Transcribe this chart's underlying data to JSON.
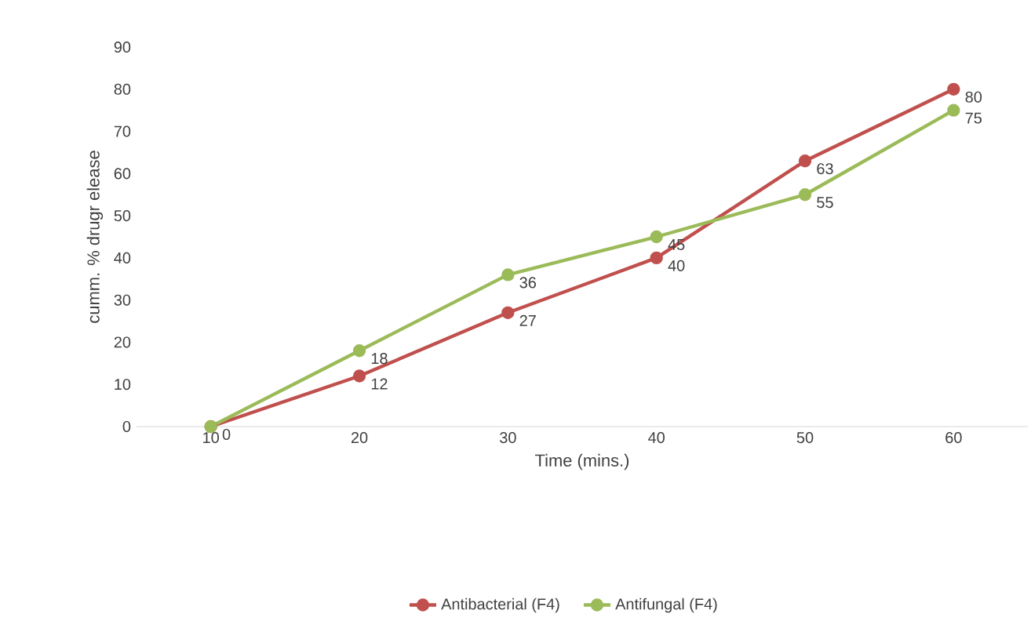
{
  "chart_data": {
    "type": "line",
    "xlabel": "Time (mins.)",
    "ylabel": "cumm. % drugr elease",
    "categories": [
      "10",
      "20",
      "30",
      "40",
      "50",
      "60"
    ],
    "series": [
      {
        "name": "Antibacterial (F4)",
        "color": "#c0504d",
        "values": [
          0,
          12,
          27,
          40,
          63,
          80
        ],
        "value_labels": [
          "0",
          "12",
          "27",
          "40",
          "63",
          "80"
        ]
      },
      {
        "name": "Antifungal (F4)",
        "color": "#9bbb59",
        "values": [
          0,
          18,
          36,
          45,
          55,
          75
        ],
        "value_labels": [
          null,
          "18",
          "36",
          "45",
          "55",
          "75"
        ]
      }
    ],
    "ylim": [
      0,
      90
    ],
    "yticks": [
      0,
      10,
      20,
      30,
      40,
      50,
      60,
      70,
      80,
      90
    ],
    "grid": false,
    "legend": "bottom",
    "marker": "circle",
    "line_style": "solid"
  }
}
